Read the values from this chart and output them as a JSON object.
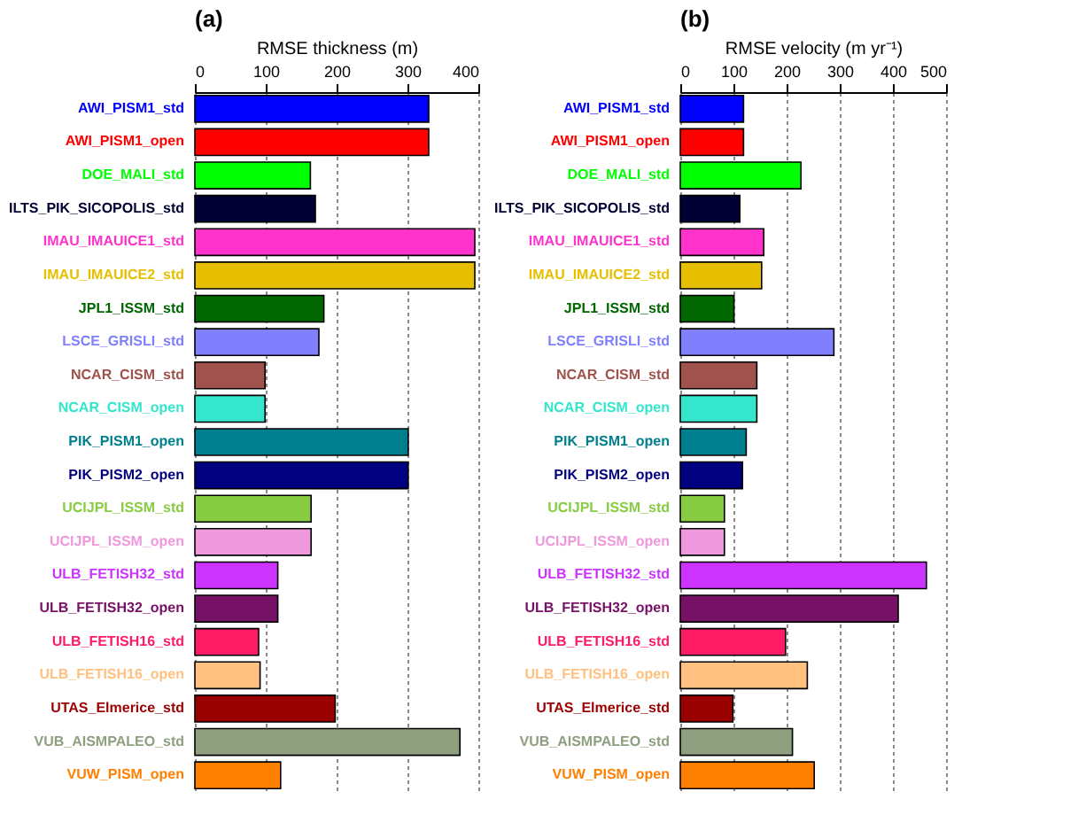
{
  "chart_data": [
    {
      "type": "bar",
      "orientation": "horizontal",
      "title": "(a)",
      "xlabel": "RMSE thickness (m)",
      "categories": [
        "AWI_PISM1_std",
        "AWI_PISM1_open",
        "DOE_MALI_std",
        "ILTS_PIK_SICOPOLIS_std",
        "IMAU_IMAUICE1_std",
        "IMAU_IMAUICE2_std",
        "JPL1_ISSM_std",
        "LSCE_GRISLI_std",
        "NCAR_CISM_std",
        "NCAR_CISM_open",
        "PIK_PISM1_open",
        "PIK_PISM2_open",
        "UCIJPL_ISSM_std",
        "UCIJPL_ISSM_open",
        "ULB_FETISH32_std",
        "ULB_FETISH32_open",
        "ULB_FETISH16_std",
        "ULB_FETISH16_open",
        "UTAS_Elmerice_std",
        "VUB_AISMPALEO_std",
        "VUW_PISM_open"
      ],
      "colors": [
        "#0000ff",
        "#ff0000",
        "#00ff00",
        "#000033",
        "#ff33cc",
        "#e6c000",
        "#006600",
        "#8080ff",
        "#a0524d",
        "#33e6cc",
        "#00808f",
        "#000080",
        "#88cc44",
        "#ee99dd",
        "#cc33ff",
        "#771166",
        "#ff1a66",
        "#ffc080",
        "#990000",
        "#8fa080",
        "#ff8000"
      ],
      "values": [
        330,
        330,
        163,
        170,
        395,
        395,
        182,
        175,
        99,
        99,
        301,
        301,
        164,
        164,
        117,
        117,
        90,
        92,
        198,
        374,
        121
      ],
      "xlim": [
        0,
        400
      ],
      "xticks": [
        0,
        100,
        200,
        300,
        400
      ],
      "grid": "x",
      "legend": false
    },
    {
      "type": "bar",
      "orientation": "horizontal",
      "title": "(b)",
      "xlabel": "RMSE velocity (m yr⁻¹)",
      "categories": [
        "AWI_PISM1_std",
        "AWI_PISM1_open",
        "DOE_MALI_std",
        "ILTS_PIK_SICOPOLIS_std",
        "IMAU_IMAUICE1_std",
        "IMAU_IMAUICE2_std",
        "JPL1_ISSM_std",
        "LSCE_GRISLI_std",
        "NCAR_CISM_std",
        "NCAR_CISM_open",
        "PIK_PISM1_open",
        "PIK_PISM2_open",
        "UCIJPL_ISSM_std",
        "UCIJPL_ISSM_open",
        "ULB_FETISH32_std",
        "ULB_FETISH32_open",
        "ULB_FETISH16_std",
        "ULB_FETISH16_open",
        "UTAS_Elmerice_std",
        "VUB_AISMPALEO_std",
        "VUW_PISM_open"
      ],
      "colors": [
        "#0000ff",
        "#ff0000",
        "#00ff00",
        "#000033",
        "#ff33cc",
        "#e6c000",
        "#006600",
        "#8080ff",
        "#a0524d",
        "#33e6cc",
        "#00808f",
        "#000080",
        "#88cc44",
        "#ee99dd",
        "#cc33ff",
        "#771166",
        "#ff1a66",
        "#ffc080",
        "#990000",
        "#8fa080",
        "#ff8000"
      ],
      "values": [
        119,
        119,
        227,
        112,
        157,
        153,
        101,
        289,
        144,
        144,
        124,
        117,
        83,
        83,
        463,
        410,
        198,
        239,
        99,
        211,
        252
      ],
      "xlim": [
        0,
        500
      ],
      "xticks": [
        0,
        100,
        200,
        300,
        400,
        500
      ],
      "grid": "x",
      "legend": false
    }
  ]
}
